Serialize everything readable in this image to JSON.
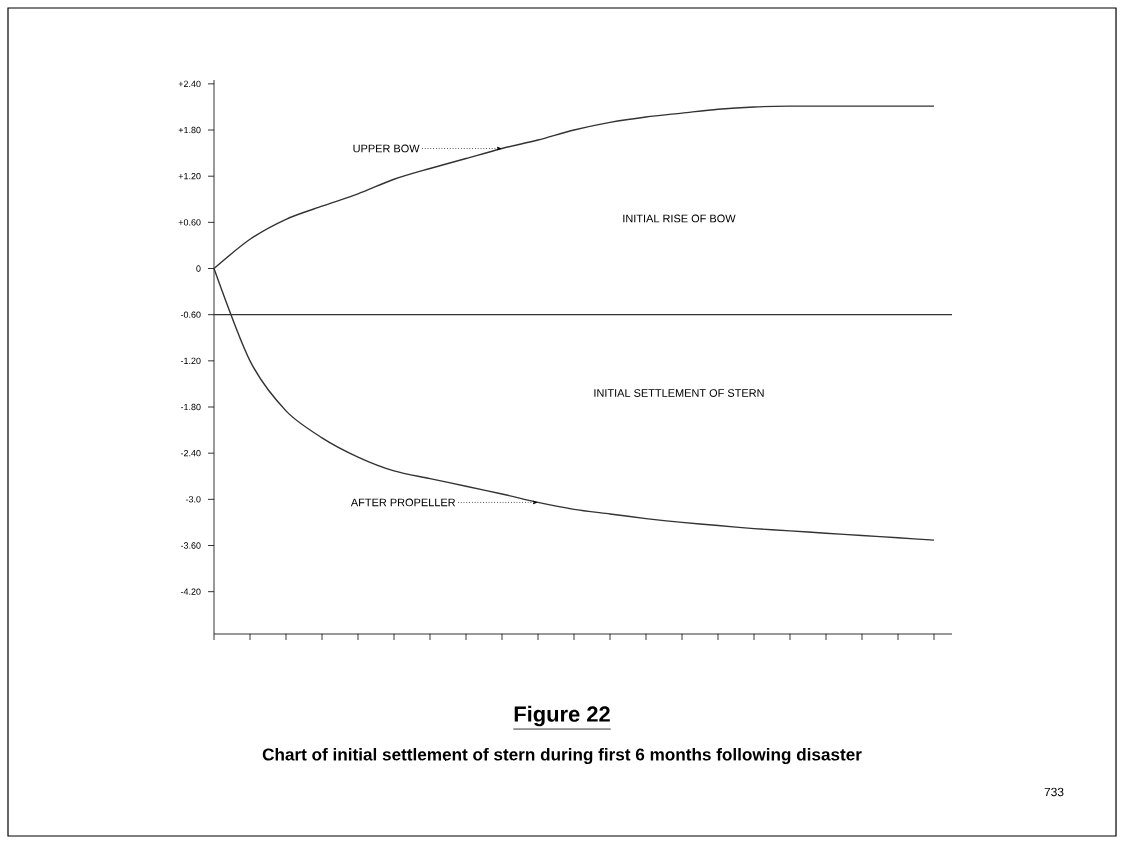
{
  "chart_data": {
    "type": "line",
    "title": "Figure 22",
    "subtitle": "Chart of initial settlement of stern during first 6 months following disaster",
    "series": [
      {
        "values": [
          0,
          0.38,
          0.64,
          0.81,
          0.97,
          1.16,
          1.3,
          1.43,
          1.56,
          1.67,
          1.8,
          1.9,
          1.97,
          2.02,
          2.07,
          2.1,
          2.11,
          2.11,
          2.11,
          2.11,
          2.11
        ],
        "color": "#333333"
      },
      {
        "values": [
          0,
          -1.2,
          -1.85,
          -2.2,
          -2.45,
          -2.63,
          -2.73,
          -2.83,
          -2.93,
          -3.04,
          -3.13,
          -3.19,
          -3.25,
          -3.3,
          -3.34,
          -3.38,
          -3.41,
          -3.44,
          -3.47,
          -3.5,
          -3.53
        ],
        "color": "#333333"
      }
    ],
    "categories": [
      null,
      null,
      null,
      null,
      null,
      null,
      null,
      null,
      null,
      null,
      null,
      null,
      null,
      null,
      null,
      null,
      null,
      null,
      null,
      null,
      null
    ],
    "ylim": [
      -4.75,
      2.45
    ],
    "yticks": [
      {
        "value": 2.4,
        "label": "+2.40"
      },
      {
        "value": 1.8,
        "label": "+1.80"
      },
      {
        "value": 1.2,
        "label": "+1.20"
      },
      {
        "value": 0.6,
        "label": "+0.60"
      },
      {
        "value": 0,
        "label": "0"
      },
      {
        "value": -0.6,
        "label": "-0.60"
      },
      {
        "value": -1.2,
        "label": "-1.20"
      },
      {
        "value": -1.8,
        "label": "-1.80"
      },
      {
        "value": -2.4,
        "label": "-2.40"
      },
      {
        "value": -3.0,
        "label": "-3.0"
      },
      {
        "value": -3.6,
        "label": "-3.60"
      },
      {
        "value": -4.2,
        "label": "-4.20"
      }
    ],
    "tick_labels": "y",
    "grid": false,
    "marker": "none",
    "line_style": "solid",
    "ref_lines": [
      {
        "axis": "y",
        "value": -0.6,
        "color": "#333333"
      }
    ],
    "annotations": [
      "UPPER BOW",
      "INITIAL RISE OF BOW",
      "INITIAL SETTLEMENT OF STERN",
      "AFTER PROPELLER",
      "733"
    ]
  }
}
